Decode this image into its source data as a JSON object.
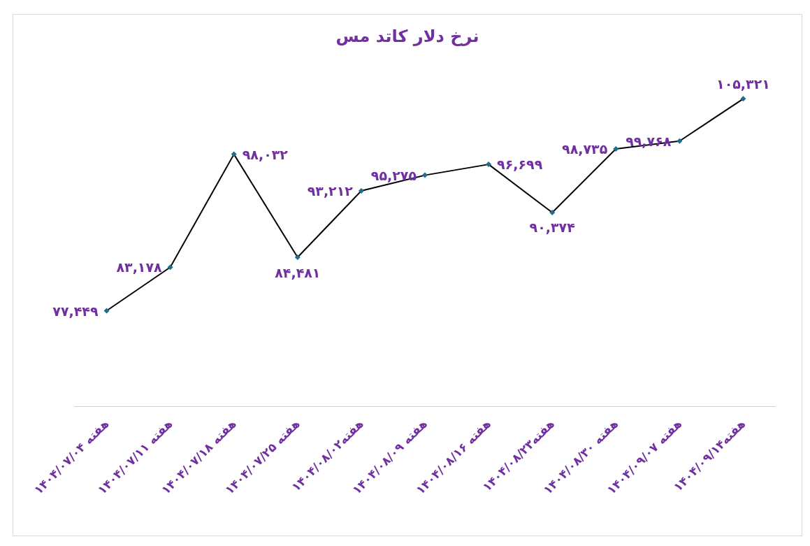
{
  "chart_data": {
    "type": "line",
    "title": "نرخ دلار کاتد مس",
    "categories": [
      "هفته ۱۴۰۴/۰۷/۰۴",
      "هفته ۱۴۰۴/۰۷/۱۱",
      "هفته ۱۴۰۴/۰۷/۱۸",
      "هفته ۱۴۰۴/۰۷/۲۵",
      "هفته۱۴۰۴/۰۸/۰۲",
      "هفته ۱۴۰۴/۰۸/۰۹",
      "هفته ۱۴۰۴/۰۸/۱۶",
      "هفته۱۴۰۴/۰۸/۲۳",
      "هفته ۱۴۰۴/۰۸/۳۰",
      "هفته ۱۴۰۴/۰۹/۰۷",
      "هفته۱۴۰۴/۰۹/۱۴"
    ],
    "series": [
      {
        "color": "#000000",
        "values": [
          77449,
          83178,
          98032,
          84481,
          93212,
          95275,
          96699,
          90374,
          98735,
          99768,
          105321
        ],
        "value_labels": [
          "۷۷,۴۴۹",
          "۸۳,۱۷۸",
          "۹۸,۰۳۲",
          "۸۴,۴۸۱",
          "۹۳,۲۱۲",
          "۹۵,۲۷۵",
          "۹۶,۶۹۹",
          "۹۰,۳۷۴",
          "۹۸,۷۳۵",
          "۹۹,۷۶۸",
          "۱۰۵,۳۲۱"
        ]
      }
    ],
    "marker": "diamond",
    "line_style": "solid"
  }
}
